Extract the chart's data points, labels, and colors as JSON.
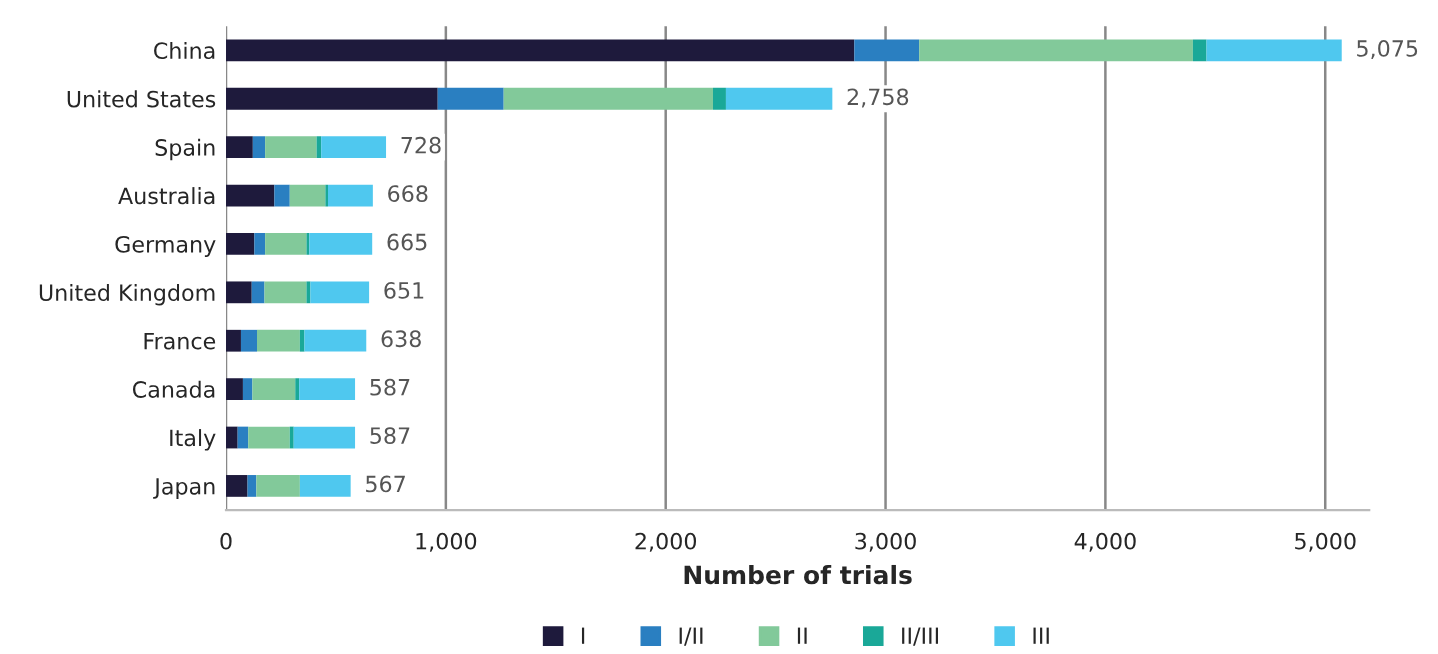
{
  "chart_data": {
    "type": "bar",
    "orientation": "horizontal",
    "stacked": true,
    "xlabel": "Number of trials",
    "categories": [
      "China",
      "United States",
      "Spain",
      "Australia",
      "Germany",
      "United Kingdom",
      "France",
      "Canada",
      "Italy",
      "Japan"
    ],
    "series": [
      {
        "name": "I",
        "color": "#1e1a3c",
        "values": [
          2858,
          963,
          122,
          220,
          129,
          117,
          68,
          77,
          53,
          98
        ]
      },
      {
        "name": "I/II",
        "color": "#2a7fc1",
        "values": [
          295,
          300,
          56,
          70,
          49,
          58,
          73,
          43,
          48,
          40
        ]
      },
      {
        "name": "II",
        "color": "#82c99a",
        "values": [
          1245,
          952,
          234,
          162,
          188,
          191,
          195,
          195,
          189,
          198
        ]
      },
      {
        "name": "II/III",
        "color": "#1aa898",
        "values": [
          62,
          59,
          21,
          12,
          13,
          18,
          21,
          18,
          18,
          null
        ]
      },
      {
        "name": "III",
        "color": "#4fc8ef",
        "values": [
          615,
          484,
          295,
          204,
          286,
          267,
          281,
          254,
          279,
          231
        ]
      }
    ],
    "totals": [
      "5,075",
      "2,758",
      "728",
      "668",
      "665",
      "651",
      "638",
      "587",
      "587",
      "567"
    ],
    "xlim": [
      0,
      5200
    ],
    "xticks": [
      0,
      {
        "value": 1000,
        "label": "1,000"
      },
      {
        "value": 2000,
        "label": "2,000"
      },
      {
        "value": 3000,
        "label": "3,000"
      },
      {
        "value": 4000,
        "label": "4,000"
      },
      {
        "value": 5000,
        "label": "5,000"
      }
    ],
    "grid": "x",
    "legend": "bottom"
  }
}
